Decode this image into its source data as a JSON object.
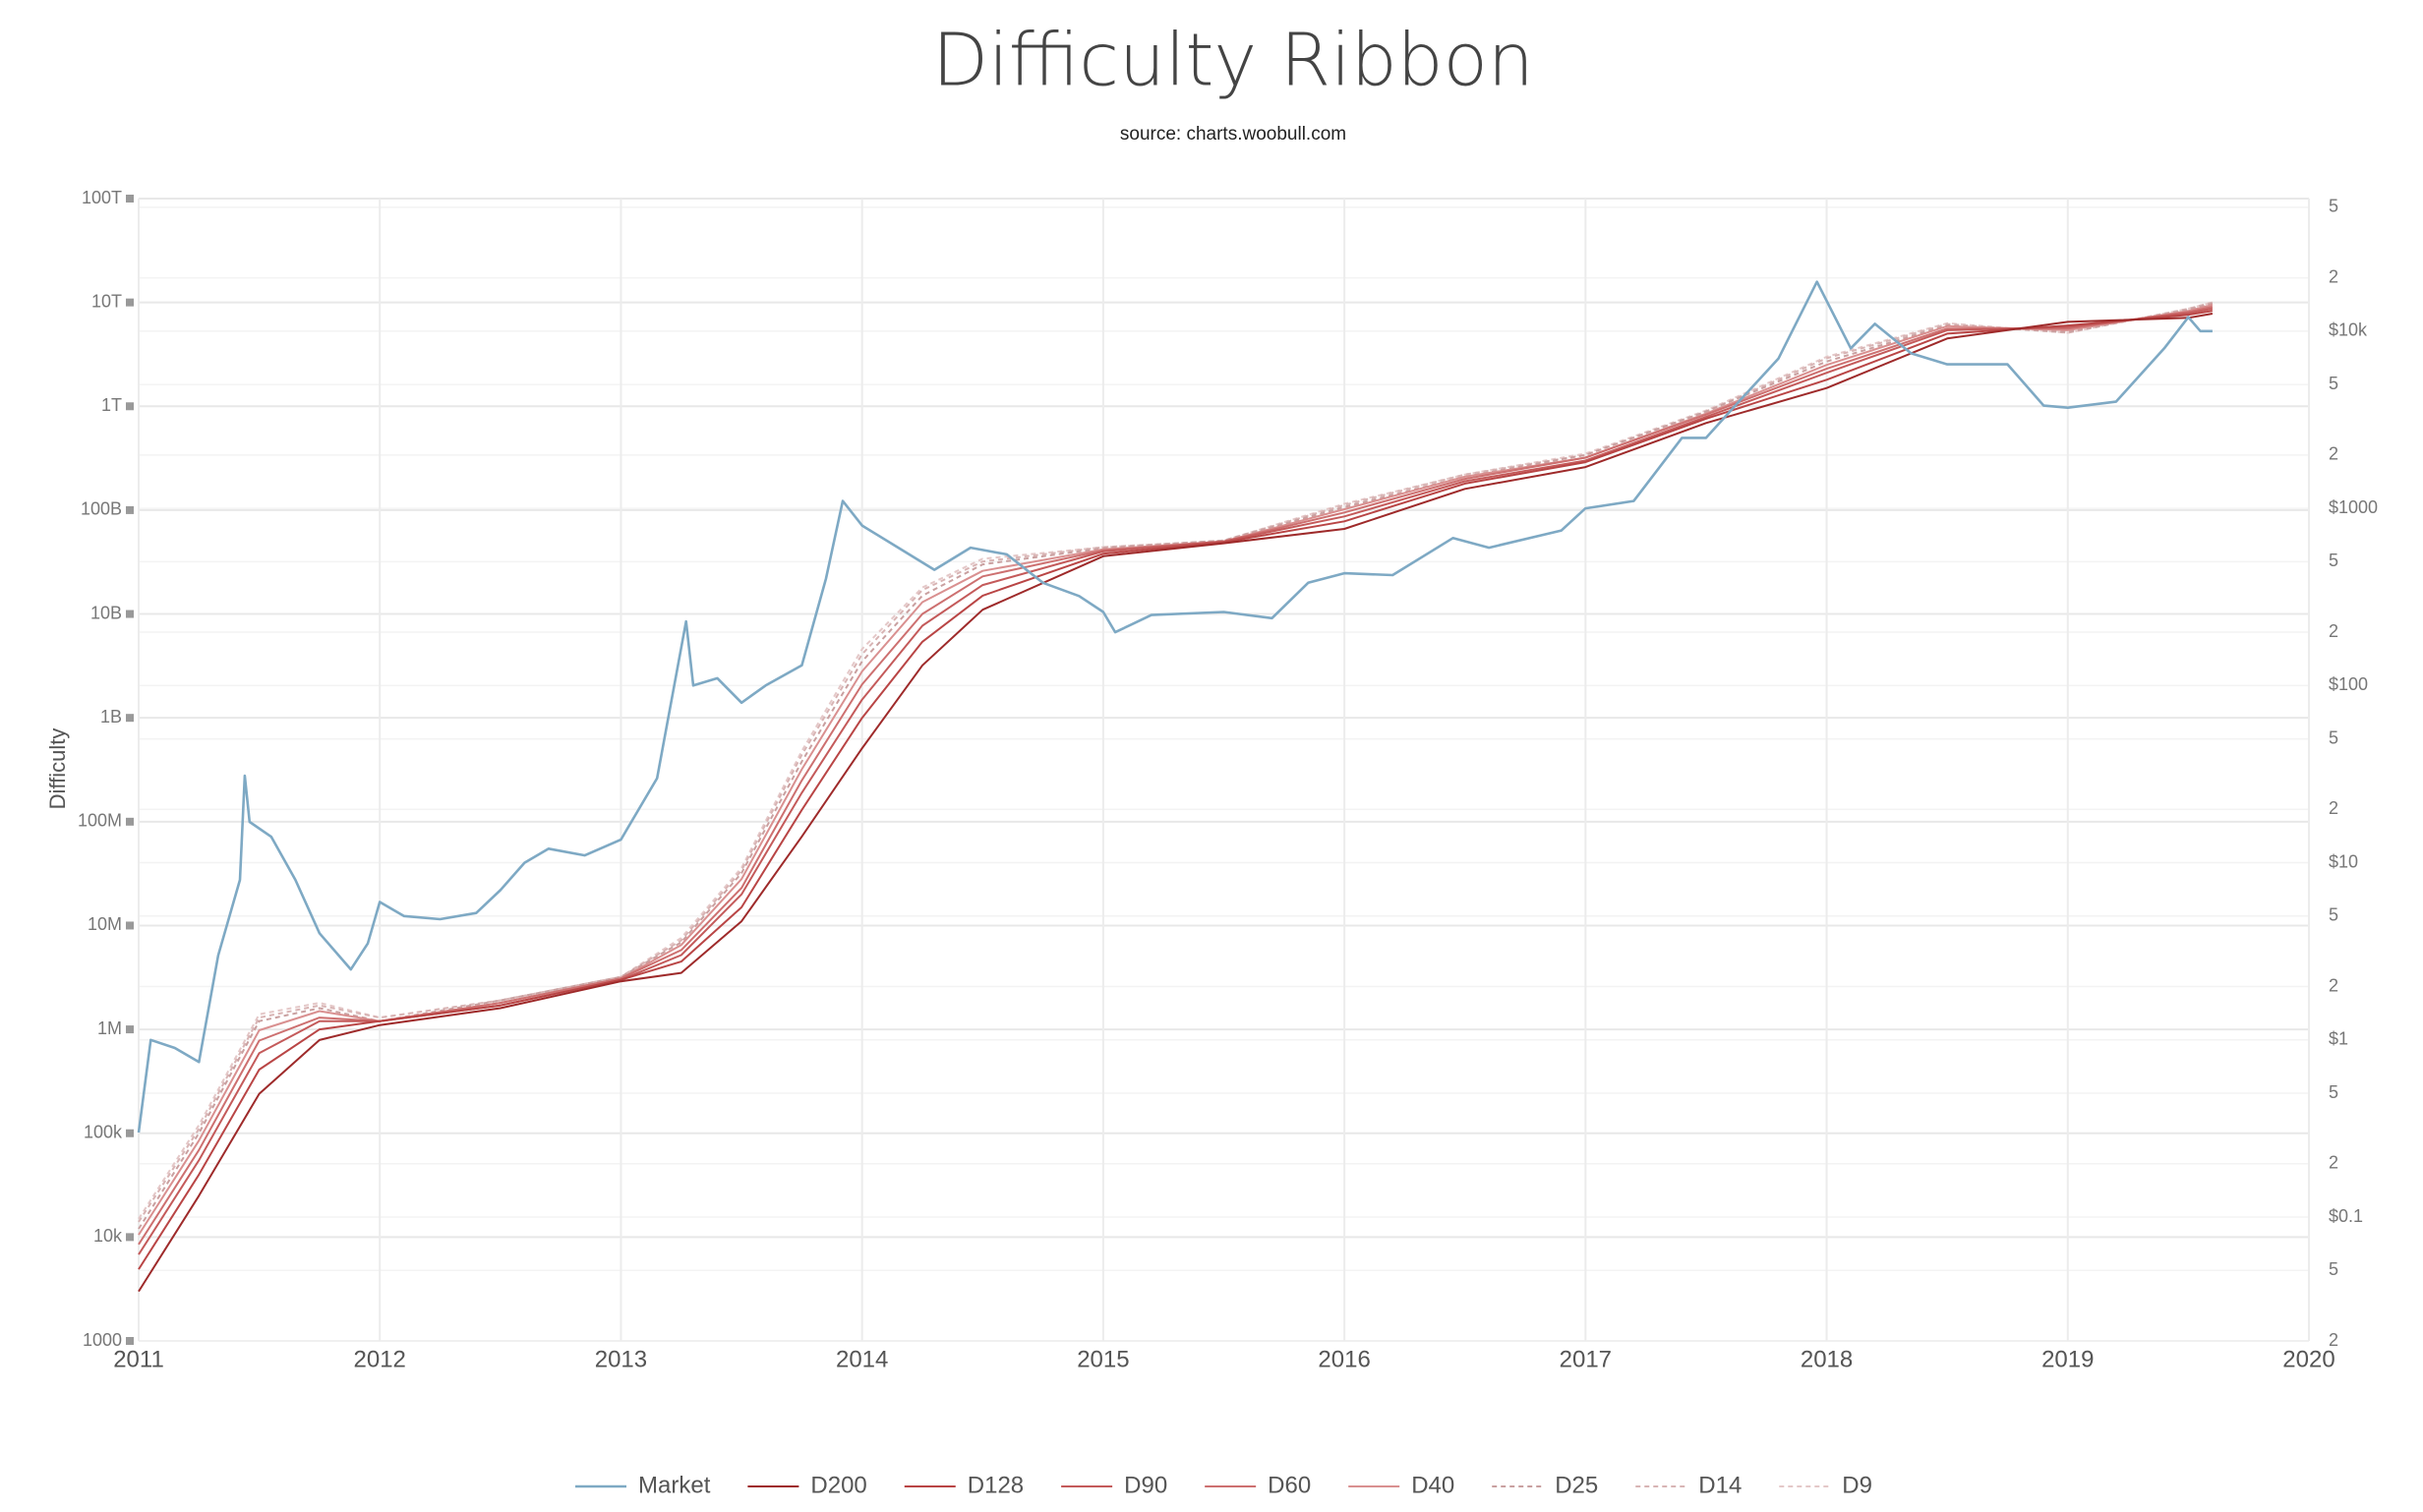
{
  "chart_data": {
    "type": "line",
    "title": "Difficulty Ribbon",
    "subtitle": "source: charts.woobull.com",
    "y_label": "Difficulty",
    "log_y": true,
    "log_y2": true,
    "grid": true,
    "legend": "bottom",
    "xlim": [
      2011,
      2020
    ],
    "xticks": [
      2011,
      2012,
      2013,
      2014,
      2015,
      2016,
      2017,
      2018,
      2019,
      2020
    ],
    "ylim": [
      1000,
      100000000000000.0
    ],
    "yticks": [
      1000,
      {
        "value": 10000.0,
        "label": "10k"
      },
      {
        "value": 100000.0,
        "label": "100k"
      },
      {
        "value": 1000000.0,
        "label": "1M"
      },
      {
        "value": 10000000.0,
        "label": "10M"
      },
      {
        "value": 100000000.0,
        "label": "100M"
      },
      {
        "value": 1000000000.0,
        "label": "1B"
      },
      {
        "value": 10000000000.0,
        "label": "10B"
      },
      {
        "value": 100000000000.0,
        "label": "100B"
      },
      {
        "value": 1000000000000.0,
        "label": "1T"
      },
      {
        "value": 10000000000000.0,
        "label": "10T"
      },
      {
        "value": 100000000000000.0,
        "label": "100T"
      }
    ],
    "y2lim": [
      0.02,
      56000
    ],
    "y2ticks": [
      {
        "value": 0.02,
        "label": "2"
      },
      {
        "value": 0.05,
        "label": "5"
      },
      {
        "value": 0.1,
        "label": "$0.1"
      },
      {
        "value": 0.2,
        "label": "2"
      },
      {
        "value": 0.5,
        "label": "5"
      },
      {
        "value": 1,
        "label": "$1"
      },
      2,
      5,
      {
        "value": 10,
        "label": "$10"
      },
      {
        "value": 20,
        "label": "2"
      },
      {
        "value": 50,
        "label": "5"
      },
      {
        "value": 100,
        "label": "$100"
      },
      {
        "value": 200,
        "label": "2"
      },
      {
        "value": 500,
        "label": "5"
      },
      {
        "value": 1000,
        "label": "$1000"
      },
      {
        "value": 2000,
        "label": "2"
      },
      {
        "value": 5000,
        "label": "5"
      },
      {
        "value": 10000,
        "label": "$10k"
      },
      {
        "value": 20000,
        "label": "2"
      },
      {
        "value": 50000,
        "label": "5"
      }
    ],
    "x": [
      2011,
      2011.25,
      2011.5,
      2011.75,
      2012,
      2012.5,
      2013,
      2013.25,
      2013.5,
      2013.75,
      2014,
      2014.25,
      2014.5,
      2015,
      2015.5,
      2016,
      2016.5,
      2017,
      2017.5,
      2018,
      2018.5,
      2019,
      2019.5,
      2019.6
    ],
    "series": [
      {
        "name": "Market",
        "color": "#7ea9c4",
        "axis": "y2",
        "x": [
          2011,
          2011.05,
          2011.15,
          2011.25,
          2011.33,
          2011.42,
          2011.44,
          2011.46,
          2011.55,
          2011.65,
          2011.75,
          2011.88,
          2011.95,
          2012,
          2012.1,
          2012.25,
          2012.4,
          2012.5,
          2012.6,
          2012.7,
          2012.85,
          2013,
          2013.15,
          2013.27,
          2013.3,
          2013.4,
          2013.5,
          2013.6,
          2013.75,
          2013.85,
          2013.92,
          2014,
          2014.15,
          2014.3,
          2014.45,
          2014.6,
          2014.75,
          2014.9,
          2015,
          2015.05,
          2015.2,
          2015.5,
          2015.7,
          2015.85,
          2016,
          2016.2,
          2016.45,
          2016.6,
          2016.9,
          2017,
          2017.2,
          2017.4,
          2017.5,
          2017.65,
          2017.8,
          2017.96,
          2018.1,
          2018.2,
          2018.35,
          2018.5,
          2018.75,
          2018.9,
          2019,
          2019.2,
          2019.4,
          2019.5,
          2019.55,
          2019.6
        ],
        "values": [
          0.3,
          1.0,
          0.9,
          0.75,
          3,
          8,
          31,
          17,
          14,
          8,
          4,
          2.5,
          3.5,
          6,
          5,
          4.8,
          5.2,
          7,
          10,
          12,
          11,
          13.5,
          30,
          230,
          100,
          110,
          80,
          100,
          130,
          400,
          1100,
          800,
          600,
          450,
          600,
          550,
          380,
          320,
          260,
          200,
          250,
          260,
          240,
          380,
          430,
          420,
          680,
          600,
          750,
          1000,
          1100,
          2500,
          2500,
          4200,
          7000,
          19000,
          8000,
          11000,
          7500,
          6500,
          6500,
          3800,
          3700,
          4000,
          8000,
          12000,
          10000,
          10000
        ]
      },
      {
        "name": "D200",
        "color": "#9e2a2a",
        "values": [
          3000.0,
          25000.0,
          240000.0,
          790000.0,
          1100000.0,
          1600000.0,
          2900000.0,
          3500000.0,
          11000000.0,
          72000000.0,
          510000000.0,
          3200000000.0,
          11000000000.0,
          36000000000.0,
          48000000000.0,
          66000000000.0,
          160000000000.0,
          260000000000.0,
          690000000000.0,
          1500000000000.0,
          4500000000000.0,
          6500000000000.0,
          7100000000000.0,
          7800000000000.0
        ]
      },
      {
        "name": "D128",
        "color": "#b94545",
        "values": [
          4900.0,
          40000.0,
          410000.0,
          1000000.0,
          1200000.0,
          1700000.0,
          3000000.0,
          4500000.0,
          15000000.0,
          130000000.0,
          1000000000.0,
          5400000000.0,
          15000000000.0,
          38000000000.0,
          49000000000.0,
          78000000000.0,
          180000000000.0,
          290000000000.0,
          760000000000.0,
          1800000000000.0,
          5000000000000.0,
          6000000000000.0,
          7600000000000.0,
          8300000000000.0
        ]
      },
      {
        "name": "D90",
        "color": "#c45a5a",
        "values": [
          6800.0,
          55000.0,
          590000.0,
          1200000.0,
          1200000.0,
          1700000.0,
          3000000.0,
          5200000.0,
          20000000.0,
          190000000.0,
          1500000000.0,
          7700000000.0,
          19000000000.0,
          40000000000.0,
          50000000000.0,
          87000000000.0,
          190000000000.0,
          300000000000.0,
          790000000000.0,
          2100000000000.0,
          5400000000000.0,
          5800000000000.0,
          7900000000000.0,
          8700000000000.0
        ]
      },
      {
        "name": "D60",
        "color": "#cd7070",
        "values": [
          8500.0,
          69000.0,
          780000.0,
          1300000.0,
          1200000.0,
          1800000.0,
          3100000.0,
          5800000.0,
          23000000.0,
          250000000.0,
          2100000000.0,
          10000000000.0,
          23000000000.0,
          41000000000.0,
          50000000000.0,
          95000000000.0,
          200000000000.0,
          320000000000.0,
          830000000000.0,
          2300000000000.0,
          5600000000000.0,
          5600000000000.0,
          8100000000000.0,
          9100000000000.0
        ]
      },
      {
        "name": "D40",
        "color": "#d99090",
        "values": [
          10500.0,
          85000.0,
          980000.0,
          1500000.0,
          1200000.0,
          1800000.0,
          3100000.0,
          6500000.0,
          28000000.0,
          320000000.0,
          2800000000.0,
          13000000000.0,
          26000000000.0,
          42000000000.0,
          50000000000.0,
          102000000000.0,
          210000000000.0,
          320000000000.0,
          850000000000.0,
          2500000000000.0,
          5900000000000.0,
          5400000000000.0,
          8300000000000.0,
          9500000000000.0
        ]
      },
      {
        "name": "D25",
        "color": "#c9a0a0",
        "dash": true,
        "values": [
          12000.0,
          100000.0,
          1200000.0,
          1600000.0,
          1200000.0,
          1900000.0,
          3200000.0,
          6900000.0,
          32000000.0,
          380000000.0,
          3500000000.0,
          15000000000.0,
          30000000000.0,
          43000000000.0,
          51000000000.0,
          107000000000.0,
          210000000000.0,
          340000000000.0,
          890000000000.0,
          2700000000000.0,
          6000000000000.0,
          5200000000000.0,
          8500000000000.0,
          9800000000000.0
        ]
      },
      {
        "name": "D14",
        "color": "#d8b4b4",
        "dash": true,
        "values": [
          14000.0,
          110000.0,
          1300000.0,
          1700000.0,
          1300000.0,
          1900000.0,
          3200000.0,
          7200000.0,
          34000000.0,
          440000000.0,
          4100000000.0,
          17000000000.0,
          32000000000.0,
          44000000000.0,
          51000000000.0,
          112000000000.0,
          220000000000.0,
          340000000000.0,
          890000000000.0,
          2900000000000.0,
          6200000000000.0,
          5100000000000.0,
          8700000000000.0,
          10000000000000.0
        ]
      },
      {
        "name": "D9",
        "color": "#e4c8c8",
        "dash": true,
        "values": [
          15000.0,
          120000.0,
          1400000.0,
          1800000.0,
          1300000.0,
          1900000.0,
          3200000.0,
          7600000.0,
          36000000.0,
          480000000.0,
          4600000000.0,
          18000000000.0,
          34000000000.0,
          44000000000.0,
          51000000000.0,
          115000000000.0,
          220000000000.0,
          350000000000.0,
          910000000000.0,
          3000000000000.0,
          6300000000000.0,
          5100000000000.0,
          8700000000000.0,
          10000000000000.0
        ]
      }
    ]
  }
}
